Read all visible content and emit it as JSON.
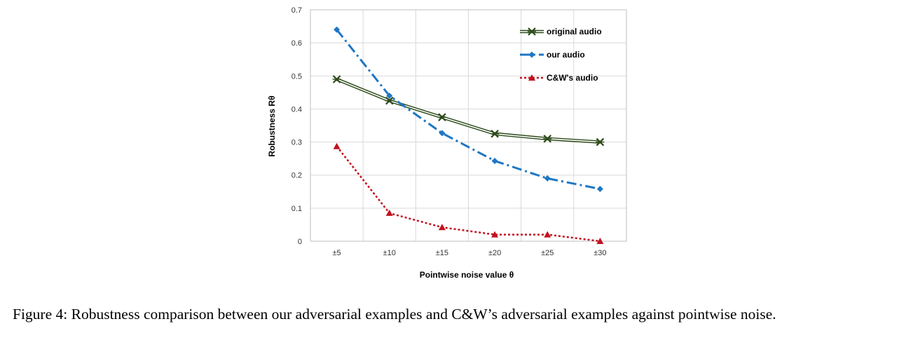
{
  "chart_data": {
    "type": "line",
    "categories": [
      "±5",
      "±10",
      "±15",
      "±20",
      "±25",
      "±30"
    ],
    "xlabel": "Pointwise noise value θ",
    "ylabel": "Robustness  Rθ",
    "ylim": [
      0,
      0.7
    ],
    "yticks": [
      "0",
      "0.1",
      "0.2",
      "0.3",
      "0.4",
      "0.5",
      "0.6",
      "0.7"
    ],
    "grid": true,
    "legend_position": "top-right",
    "series": [
      {
        "name": "original audio",
        "values": [
          0.49,
          0.425,
          0.375,
          0.325,
          0.31,
          0.3
        ],
        "color": "#4a6a2a",
        "marker": "x-star",
        "line": "double"
      },
      {
        "name": "our audio",
        "values": [
          0.64,
          0.44,
          0.327,
          0.243,
          0.19,
          0.158
        ],
        "color": "#1f77c4",
        "marker": "diamond",
        "line": "dash-dot"
      },
      {
        "name": "C&W's audio",
        "values": [
          0.287,
          0.085,
          0.042,
          0.02,
          0.02,
          0.0
        ],
        "color": "#c0121e",
        "marker": "triangle",
        "line": "dotted"
      }
    ]
  },
  "caption": "Figure 4: Robustness comparison between our adversarial examples and C&W’s adversarial examples against pointwise noise."
}
